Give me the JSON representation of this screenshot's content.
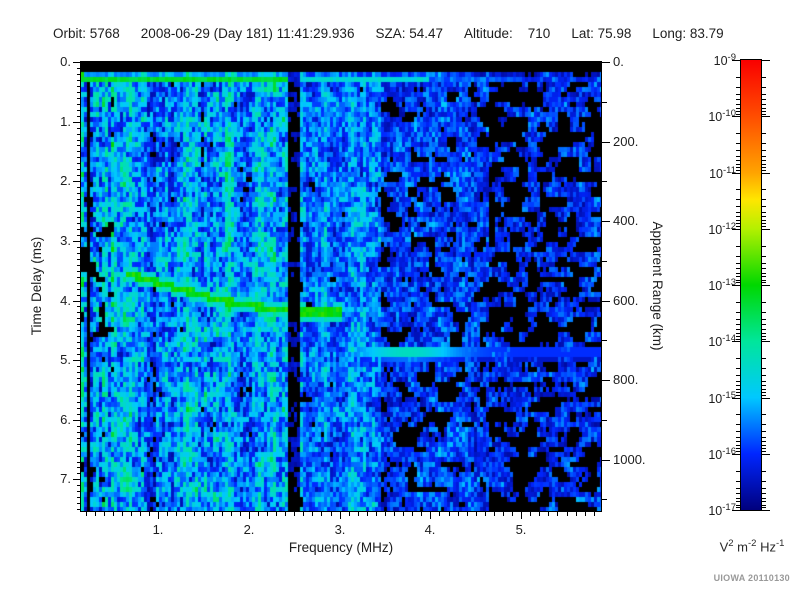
{
  "header": {
    "segments": [
      "Orbit: 5768",
      "2008-06-29 (Day 181) 11:41:29.936",
      "SZA: 54.47",
      "Altitude:    710",
      "Lat: 75.98",
      "Long: 83.79"
    ]
  },
  "credit": "UIOWA 20110130",
  "chart_data": {
    "type": "heatmap",
    "xlabel": "Frequency (MHz)",
    "ylabel": "Time Delay (ms)",
    "y2label": "Apparent Range (km)",
    "xlim": [
      0.15,
      5.88
    ],
    "ylim": [
      0,
      7.53
    ],
    "y2lim": [
      0,
      1129
    ],
    "x_major_ticks": [
      1,
      2,
      3,
      4,
      5
    ],
    "x_minor_step_mhz": 0.1,
    "y_major_ticks": [
      0,
      1,
      2,
      3,
      4,
      5,
      6,
      7
    ],
    "y_minor_step_ms": 0.1,
    "y2_major_ticks": [
      0,
      200,
      400,
      600,
      800,
      1000
    ],
    "y2_minor_step_km": 100,
    "range_km_per_ms": 150,
    "colorbar": {
      "scale": "log",
      "min_exp": -17,
      "max_exp": -9,
      "tick_exponents": [
        -9,
        -10,
        -11,
        -12,
        -13,
        -14,
        -15,
        -16,
        -17
      ],
      "unit_parts": [
        {
          "base": "V",
          "exp": "2"
        },
        {
          "base": "m",
          "exp": "-2"
        },
        {
          "base": "Hz",
          "exp": "-1"
        }
      ],
      "stops": [
        {
          "v": 0.0,
          "color": "#00007d"
        },
        {
          "v": 0.125,
          "color": "#0026ff"
        },
        {
          "v": 0.25,
          "color": "#00c8ff"
        },
        {
          "v": 0.375,
          "color": "#00e69b"
        },
        {
          "v": 0.5,
          "color": "#00d800"
        },
        {
          "v": 0.625,
          "color": "#b4f000"
        },
        {
          "v": 0.69,
          "color": "#ffe600"
        },
        {
          "v": 0.75,
          "color": "#ffa300"
        },
        {
          "v": 0.875,
          "color": "#ff4d00"
        },
        {
          "v": 1.0,
          "color": "#fa0000"
        }
      ]
    },
    "features": {
      "top_black_band_ms": [
        0,
        0.18
      ],
      "surface_reflection": {
        "delay_ms": 0.26,
        "strong_until_mhz": 2.44,
        "medium_until_mhz": 4.0,
        "value_strong": 0.46,
        "value_medium": 0.3,
        "value_weak": 0.16
      },
      "ionospheric_echo_trace": {
        "value": 0.5,
        "points_mhz_ms": [
          [
            0.66,
            3.55
          ],
          [
            0.8,
            3.62
          ],
          [
            0.95,
            3.68
          ],
          [
            1.1,
            3.74
          ],
          [
            1.25,
            3.82
          ],
          [
            1.42,
            3.88
          ],
          [
            1.6,
            3.96
          ],
          [
            1.8,
            4.03
          ],
          [
            2.0,
            4.08
          ],
          [
            2.2,
            4.13
          ],
          [
            2.42,
            4.17
          ],
          [
            2.64,
            4.2
          ],
          [
            2.88,
            4.2
          ],
          [
            3.04,
            4.19
          ]
        ]
      },
      "faint_echo": {
        "delay_ms": 4.88,
        "fmin_mhz": 3.05,
        "fmax_mhz": 5.88,
        "peak_mhz": 3.75,
        "value": 0.33
      },
      "attenuation_gap_mhz": [
        2.44,
        2.56
      ],
      "noise_bands": [
        {
          "fmin": 0.15,
          "fmax": 0.52,
          "base": 0.26,
          "stripe": 0.95,
          "noise": 0.13,
          "black": 0.2
        },
        {
          "fmin": 0.52,
          "fmax": 2.44,
          "base": 0.22,
          "stripe": 0.5,
          "noise": 0.11,
          "black": 0.05
        },
        {
          "fmin": 2.44,
          "fmax": 2.56,
          "base": 0.04,
          "stripe": 0.3,
          "noise": 0.04,
          "black": 0.5
        },
        {
          "fmin": 2.56,
          "fmax": 3.45,
          "base": 0.18,
          "stripe": 0.28,
          "noise": 0.09,
          "black": 0.08
        },
        {
          "fmin": 3.45,
          "fmax": 4.65,
          "base": 0.13,
          "stripe": 0.18,
          "noise": 0.08,
          "black": 0.3
        },
        {
          "fmin": 4.65,
          "fmax": 5.88,
          "base": 0.11,
          "stripe": 0.15,
          "noise": 0.08,
          "black": 0.46
        }
      ]
    }
  }
}
